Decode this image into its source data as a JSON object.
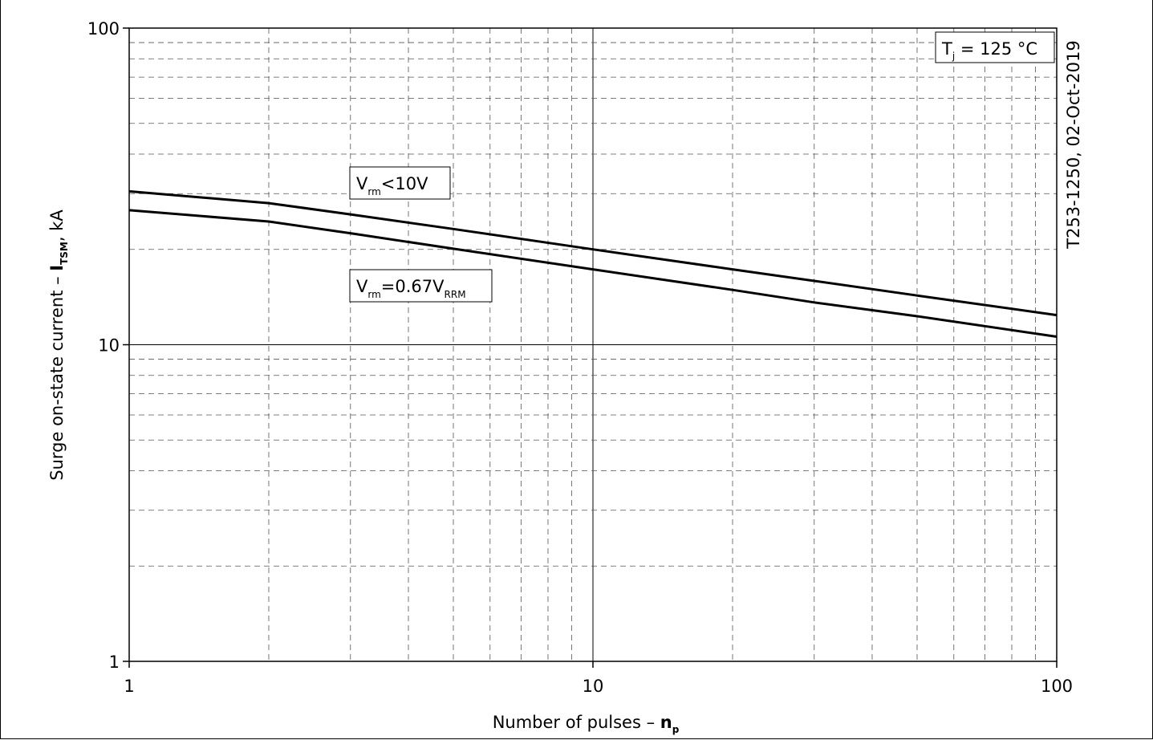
{
  "chart_data": {
    "type": "line",
    "title": "",
    "x_scale": "log",
    "y_scale": "log",
    "xlim": [
      1,
      100
    ],
    "ylim": [
      1,
      100
    ],
    "x_ticks": [
      "1",
      "10",
      "100"
    ],
    "y_ticks": [
      "100",
      "10",
      "1"
    ],
    "xlabel": {
      "text": "Number of pulses – ",
      "symbol": "n",
      "symbol_sub": "p"
    },
    "ylabel": {
      "text": "Surge on-state current – ",
      "symbol": "I",
      "symbol_sub": "TSM",
      "unit": ", kA"
    },
    "grid": "major solid, minor dashed",
    "series": [
      {
        "label": {
          "main": "V",
          "sub": "rm",
          "rest": "<10V"
        },
        "x": [
          1,
          2,
          3,
          5,
          10,
          20,
          30,
          50,
          100
        ],
        "y": [
          30.5,
          28.0,
          25.8,
          23.2,
          20.0,
          17.3,
          15.9,
          14.3,
          12.4
        ]
      },
      {
        "label": {
          "main": "V",
          "sub": "rm",
          "rest": "=0.67V",
          "sub2": "RRM"
        },
        "x": [
          1,
          2,
          3,
          5,
          10,
          20,
          30,
          50,
          100
        ],
        "y": [
          26.6,
          24.5,
          22.5,
          20.1,
          17.3,
          14.9,
          13.6,
          12.3,
          10.6
        ]
      }
    ],
    "annotations": {
      "temperature": {
        "main": "T",
        "sub": "j",
        "rest": " = 125 °C"
      },
      "doc_id": "T253-1250, 02-Oct-2019"
    }
  }
}
